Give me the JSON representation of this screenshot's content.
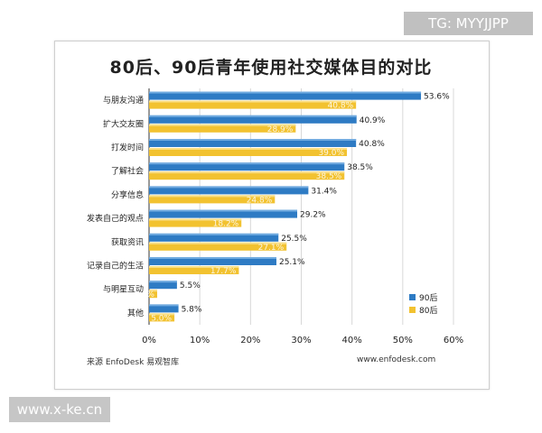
{
  "watermarks": {
    "top_right": "TG: MYYJJPP",
    "bottom_left": "www.x-ke.cn"
  },
  "source_text": "来源   EnfoDesk 易观智库",
  "url_text": "www.enfodesk.com",
  "colors": {
    "series_90": "#2e7bc4",
    "series_80": "#f2c230",
    "grid": "#d8d8d8",
    "axis": "#333333"
  },
  "chart_data": {
    "type": "bar",
    "orientation": "horizontal",
    "title": "80后、90后青年使用社交媒体目的对比",
    "categories": [
      "与朋友沟通",
      "扩大交友圈",
      "打发时间",
      "了解社会",
      "分享信息",
      "发表自己的观点",
      "获取资讯",
      "记录自己的生活",
      "与明星互动",
      "其他"
    ],
    "series": [
      {
        "name": "90后",
        "values": [
          53.6,
          40.9,
          40.8,
          38.5,
          31.4,
          29.2,
          25.5,
          25.1,
          5.5,
          5.8
        ],
        "labels": [
          "53.6%",
          "40.9%",
          "40.8%",
          "38.5%",
          "31.4%",
          "29.2%",
          "25.5%",
          "25.1%",
          "5.5%",
          "5.8%"
        ]
      },
      {
        "name": "80后",
        "values": [
          40.8,
          28.9,
          39.0,
          38.5,
          24.8,
          18.2,
          27.1,
          17.7,
          1.6,
          5.0
        ],
        "labels": [
          "40.8%",
          "28.9%",
          "39.0%",
          "38.5%",
          "24.8%",
          "18.2%",
          "27.1%",
          "17.7%",
          "1.6%",
          "5.0%"
        ]
      }
    ],
    "xlim": [
      0,
      60
    ],
    "xticks": [
      "0%",
      "10%",
      "20%",
      "30%",
      "40%",
      "50%",
      "60%"
    ],
    "legend_position": "lower-right",
    "grid": true
  }
}
